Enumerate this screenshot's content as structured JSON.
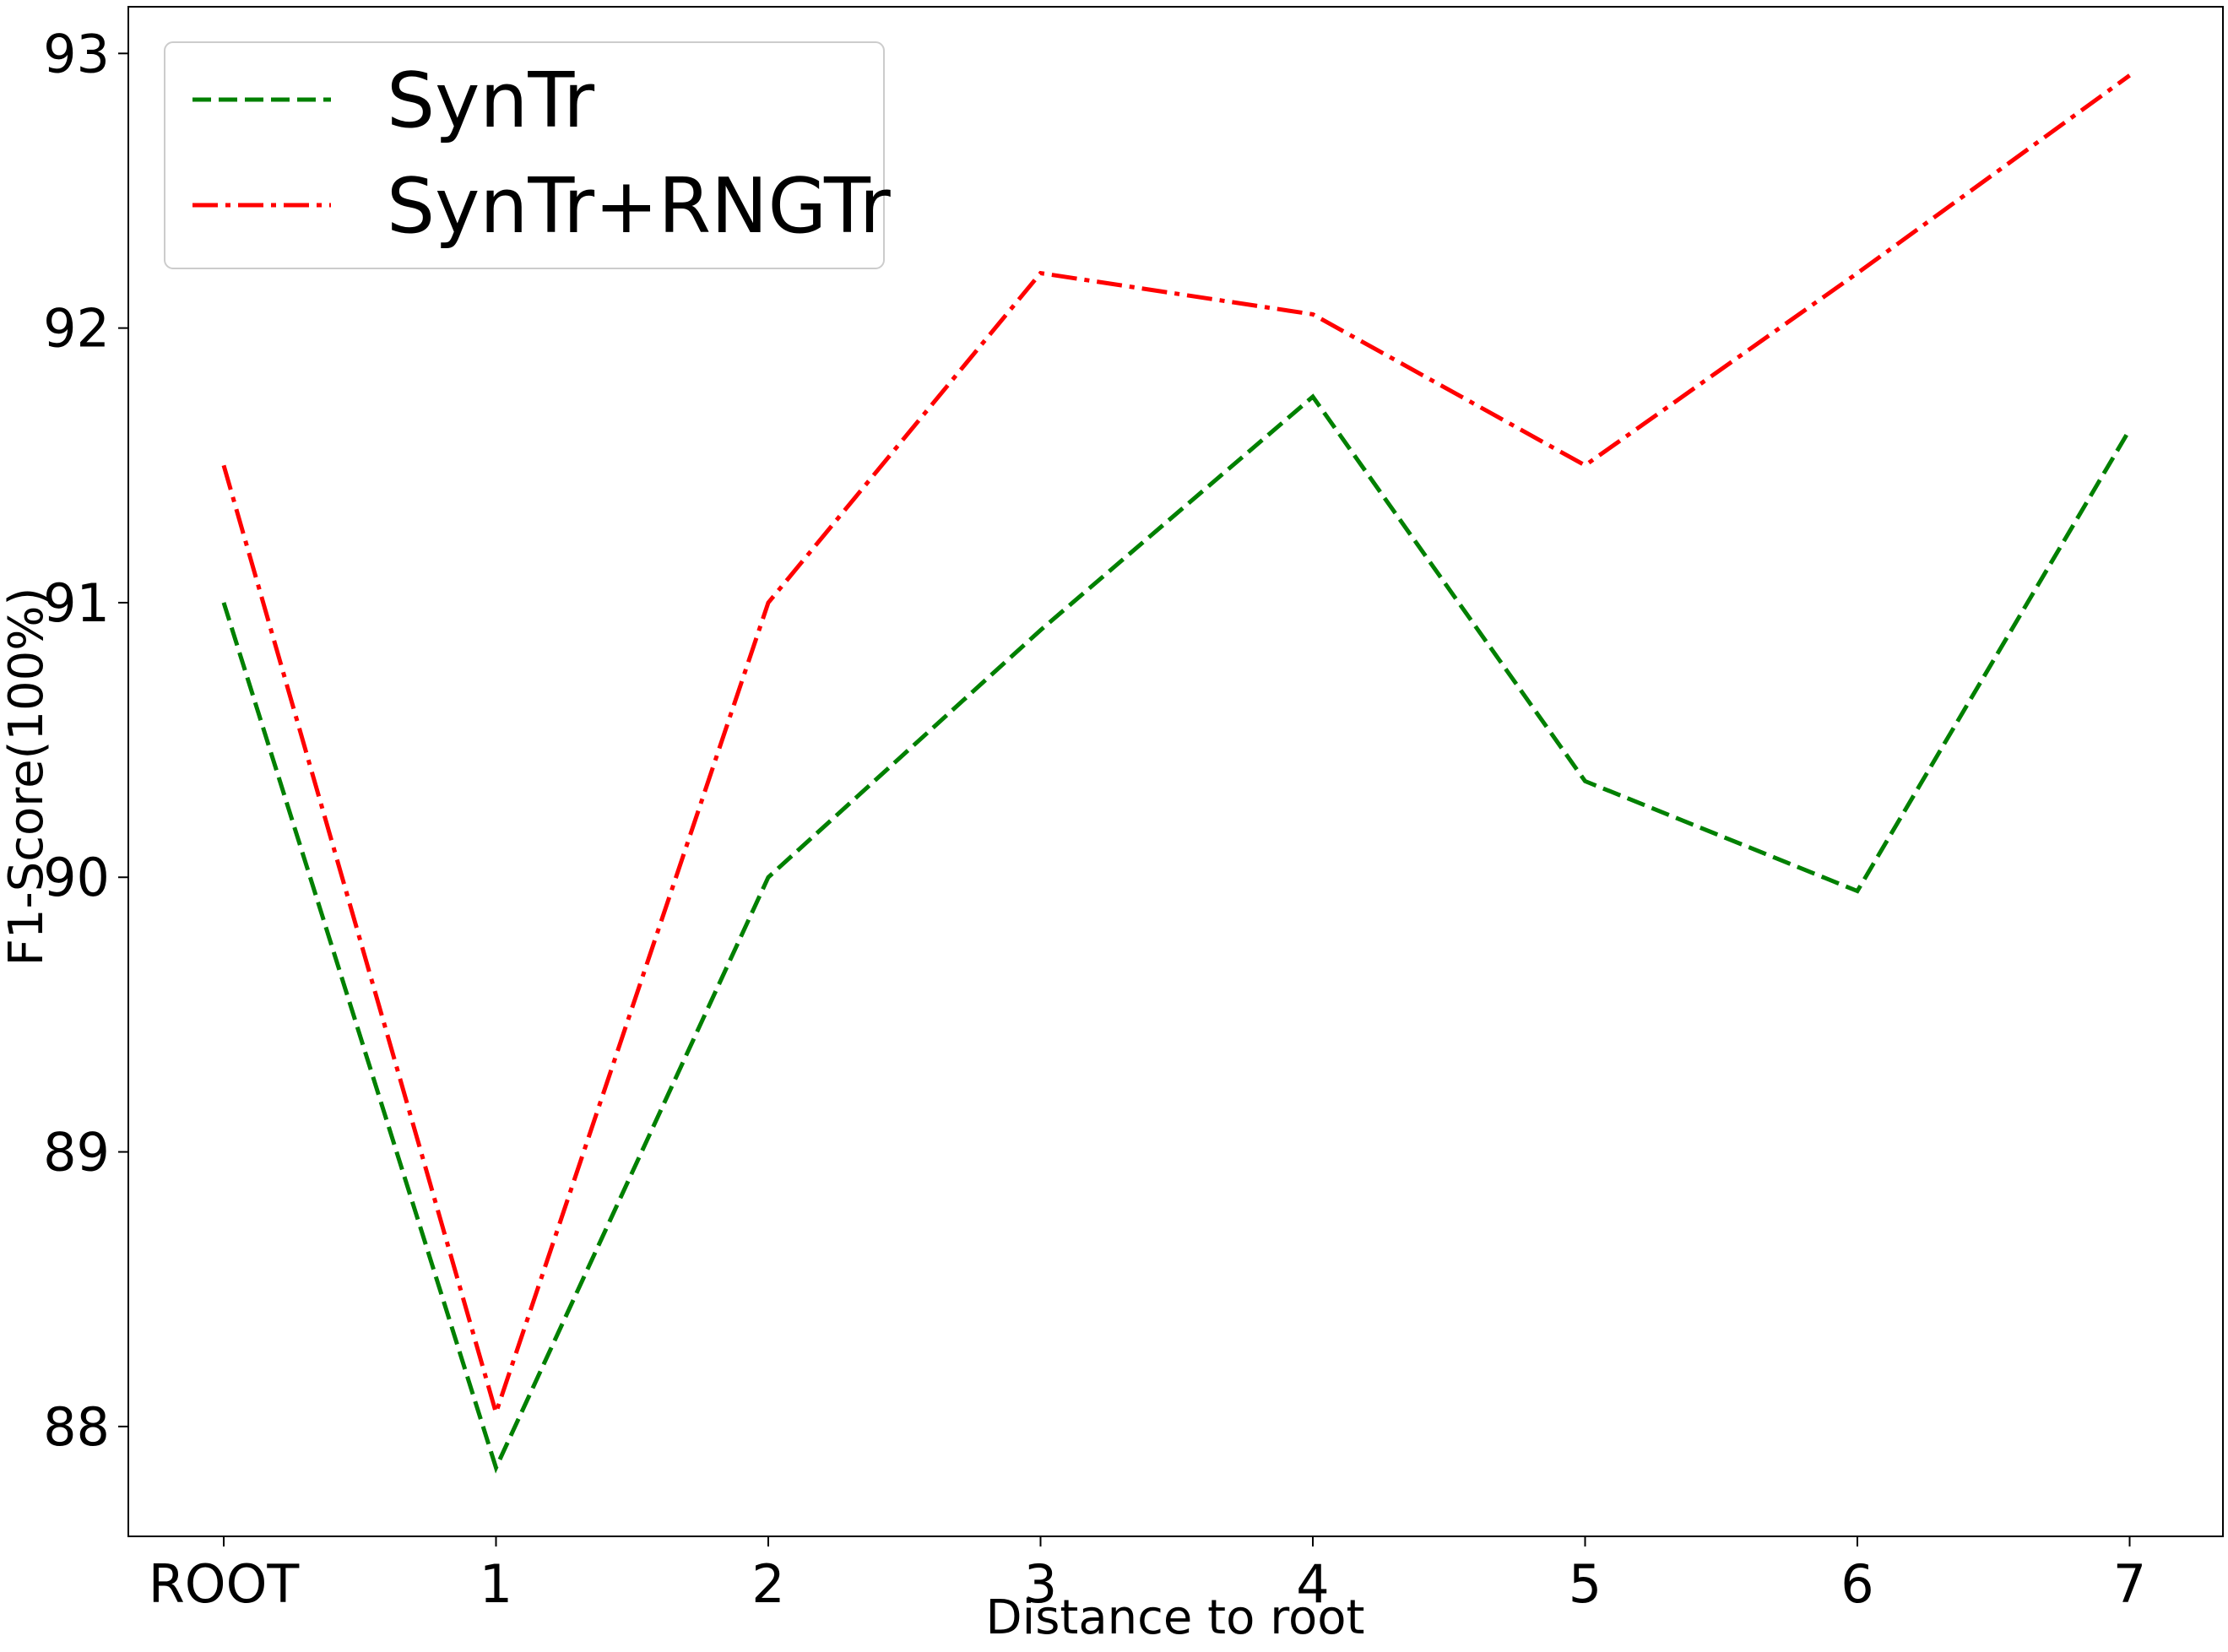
{
  "chart_data": {
    "type": "line",
    "categories": [
      "ROOT",
      "1",
      "2",
      "3",
      "4",
      "5",
      "6",
      "7"
    ],
    "series": [
      {
        "name": "SynTr",
        "values": [
          91.0,
          87.85,
          90.0,
          90.9,
          91.75,
          90.35,
          89.95,
          91.63
        ],
        "color": "#008000",
        "dash": "dashed"
      },
      {
        "name": "SynTr+RNGTr",
        "values": [
          91.5,
          88.05,
          91.0,
          92.2,
          92.05,
          91.5,
          92.2,
          92.92
        ],
        "color": "#ff0000",
        "dash": "dashdot"
      }
    ],
    "xlabel": "Distance to root",
    "ylabel": "F1-Score(100%)",
    "yticks": [
      88,
      89,
      90,
      91,
      92,
      93
    ],
    "ylim": [
      87.6,
      93.17
    ],
    "grid": false,
    "legend_position": "top-left"
  }
}
